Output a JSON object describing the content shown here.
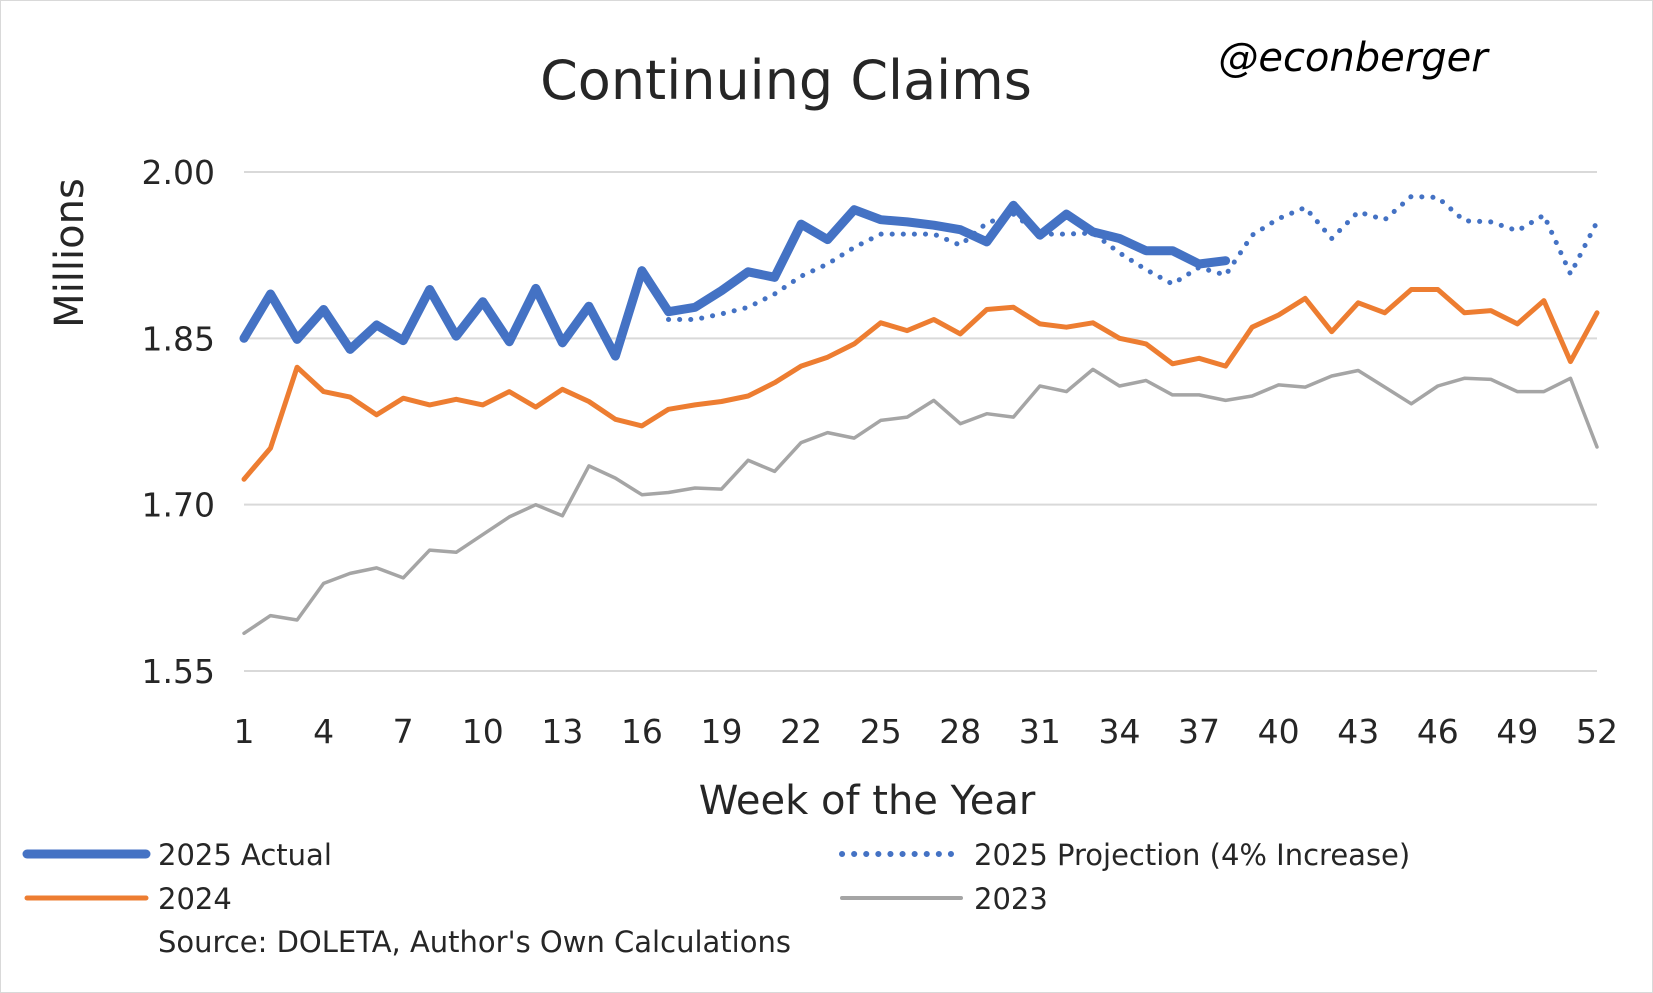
{
  "chart_data": {
    "type": "line",
    "title": "Continuing Claims",
    "handle": "@econberger",
    "xlabel": "Week of the Year",
    "ylabel": "Millions",
    "ylim": [
      1.55,
      2.0
    ],
    "yticks": [
      "1.55",
      "1.70",
      "1.85",
      "2.00"
    ],
    "xlim": [
      1,
      52
    ],
    "xticks": [
      "1",
      "4",
      "7",
      "10",
      "13",
      "16",
      "19",
      "22",
      "25",
      "28",
      "31",
      "34",
      "37",
      "40",
      "43",
      "46",
      "49",
      "52"
    ],
    "grid": true,
    "legend_position": "bottom",
    "source": "Source: DOLETA, Author's Own Calculations",
    "series": [
      {
        "name": "2023",
        "color": "#a5a5a5",
        "style": "solid",
        "x": [
          1,
          2,
          3,
          4,
          5,
          6,
          7,
          8,
          9,
          10,
          11,
          12,
          13,
          14,
          15,
          16,
          17,
          18,
          19,
          20,
          21,
          22,
          23,
          24,
          25,
          26,
          27,
          28,
          29,
          30,
          31,
          32,
          33,
          34,
          35,
          36,
          37,
          38,
          39,
          40,
          41,
          42,
          43,
          44,
          45,
          46,
          47,
          48,
          49,
          50,
          51,
          52
        ],
        "values": [
          1.584,
          1.6,
          1.596,
          1.629,
          1.638,
          1.643,
          1.634,
          1.659,
          1.657,
          1.673,
          1.689,
          1.7,
          1.69,
          1.735,
          1.724,
          1.709,
          1.711,
          1.715,
          1.714,
          1.74,
          1.73,
          1.756,
          1.765,
          1.76,
          1.776,
          1.779,
          1.794,
          1.773,
          1.782,
          1.779,
          1.807,
          1.802,
          1.822,
          1.807,
          1.812,
          1.799,
          1.799,
          1.794,
          1.798,
          1.808,
          1.806,
          1.816,
          1.821,
          1.806,
          1.791,
          1.807,
          1.814,
          1.813,
          1.802,
          1.802,
          1.814,
          1.752
        ]
      },
      {
        "name": "2024",
        "color": "#ed7d31",
        "style": "solid",
        "x": [
          1,
          2,
          3,
          4,
          5,
          6,
          7,
          8,
          9,
          10,
          11,
          12,
          13,
          14,
          15,
          16,
          17,
          18,
          19,
          20,
          21,
          22,
          23,
          24,
          25,
          26,
          27,
          28,
          29,
          30,
          31,
          32,
          33,
          34,
          35,
          36,
          37,
          38,
          39,
          40,
          41,
          42,
          43,
          44,
          45,
          46,
          47,
          48,
          49,
          50,
          51,
          52
        ],
        "values": [
          1.723,
          1.751,
          1.824,
          1.802,
          1.797,
          1.781,
          1.796,
          1.79,
          1.795,
          1.79,
          1.802,
          1.788,
          1.804,
          1.793,
          1.777,
          1.771,
          1.786,
          1.79,
          1.793,
          1.798,
          1.81,
          1.825,
          1.833,
          1.845,
          1.864,
          1.857,
          1.867,
          1.854,
          1.876,
          1.878,
          1.863,
          1.86,
          1.864,
          1.85,
          1.845,
          1.827,
          1.832,
          1.825,
          1.86,
          1.871,
          1.886,
          1.856,
          1.882,
          1.873,
          1.894,
          1.894,
          1.873,
          1.875,
          1.863,
          1.884,
          1.829,
          1.873
        ]
      },
      {
        "name": "2025 Projection (4% Increase)",
        "color": "#4472c4",
        "style": "dotted",
        "x": [
          17,
          18,
          19,
          20,
          21,
          22,
          23,
          24,
          25,
          26,
          27,
          28,
          29,
          30,
          31,
          32,
          33,
          34,
          35,
          36,
          37,
          38,
          39,
          40,
          41,
          42,
          43,
          44,
          45,
          46,
          47,
          48,
          49,
          50,
          51,
          52
        ],
        "values": [
          1.867,
          1.867,
          1.872,
          1.878,
          1.89,
          1.906,
          1.917,
          1.932,
          1.944,
          1.944,
          1.944,
          1.934,
          1.954,
          1.962,
          1.944,
          1.944,
          1.945,
          1.927,
          1.912,
          1.899,
          1.914,
          1.907,
          1.943,
          1.958,
          1.968,
          1.94,
          1.964,
          1.957,
          1.978,
          1.977,
          1.956,
          1.955,
          1.947,
          1.961,
          1.908,
          1.955
        ]
      },
      {
        "name": "2025 Actual",
        "color": "#4472c4",
        "style": "solid-thick",
        "x": [
          1,
          2,
          3,
          4,
          5,
          6,
          7,
          8,
          9,
          10,
          11,
          12,
          13,
          14,
          15,
          16,
          17,
          18,
          19,
          20,
          21,
          22,
          23,
          24,
          25,
          26,
          27,
          28,
          29,
          30,
          31,
          32,
          33,
          34,
          35,
          36,
          37,
          38
        ],
        "values": [
          1.85,
          1.89,
          1.849,
          1.876,
          1.84,
          1.862,
          1.848,
          1.894,
          1.852,
          1.883,
          1.847,
          1.895,
          1.846,
          1.879,
          1.834,
          1.911,
          1.874,
          1.878,
          1.893,
          1.91,
          1.905,
          1.953,
          1.939,
          1.966,
          1.957,
          1.955,
          1.952,
          1.948,
          1.937,
          1.97,
          1.943,
          1.962,
          1.946,
          1.94,
          1.929,
          1.929,
          1.917,
          1.92
        ]
      }
    ]
  },
  "legend": {
    "items": [
      {
        "label": "2025 Actual"
      },
      {
        "label": "2025 Projection (4% Increase)"
      },
      {
        "label": "2024"
      },
      {
        "label": "2023"
      }
    ]
  }
}
